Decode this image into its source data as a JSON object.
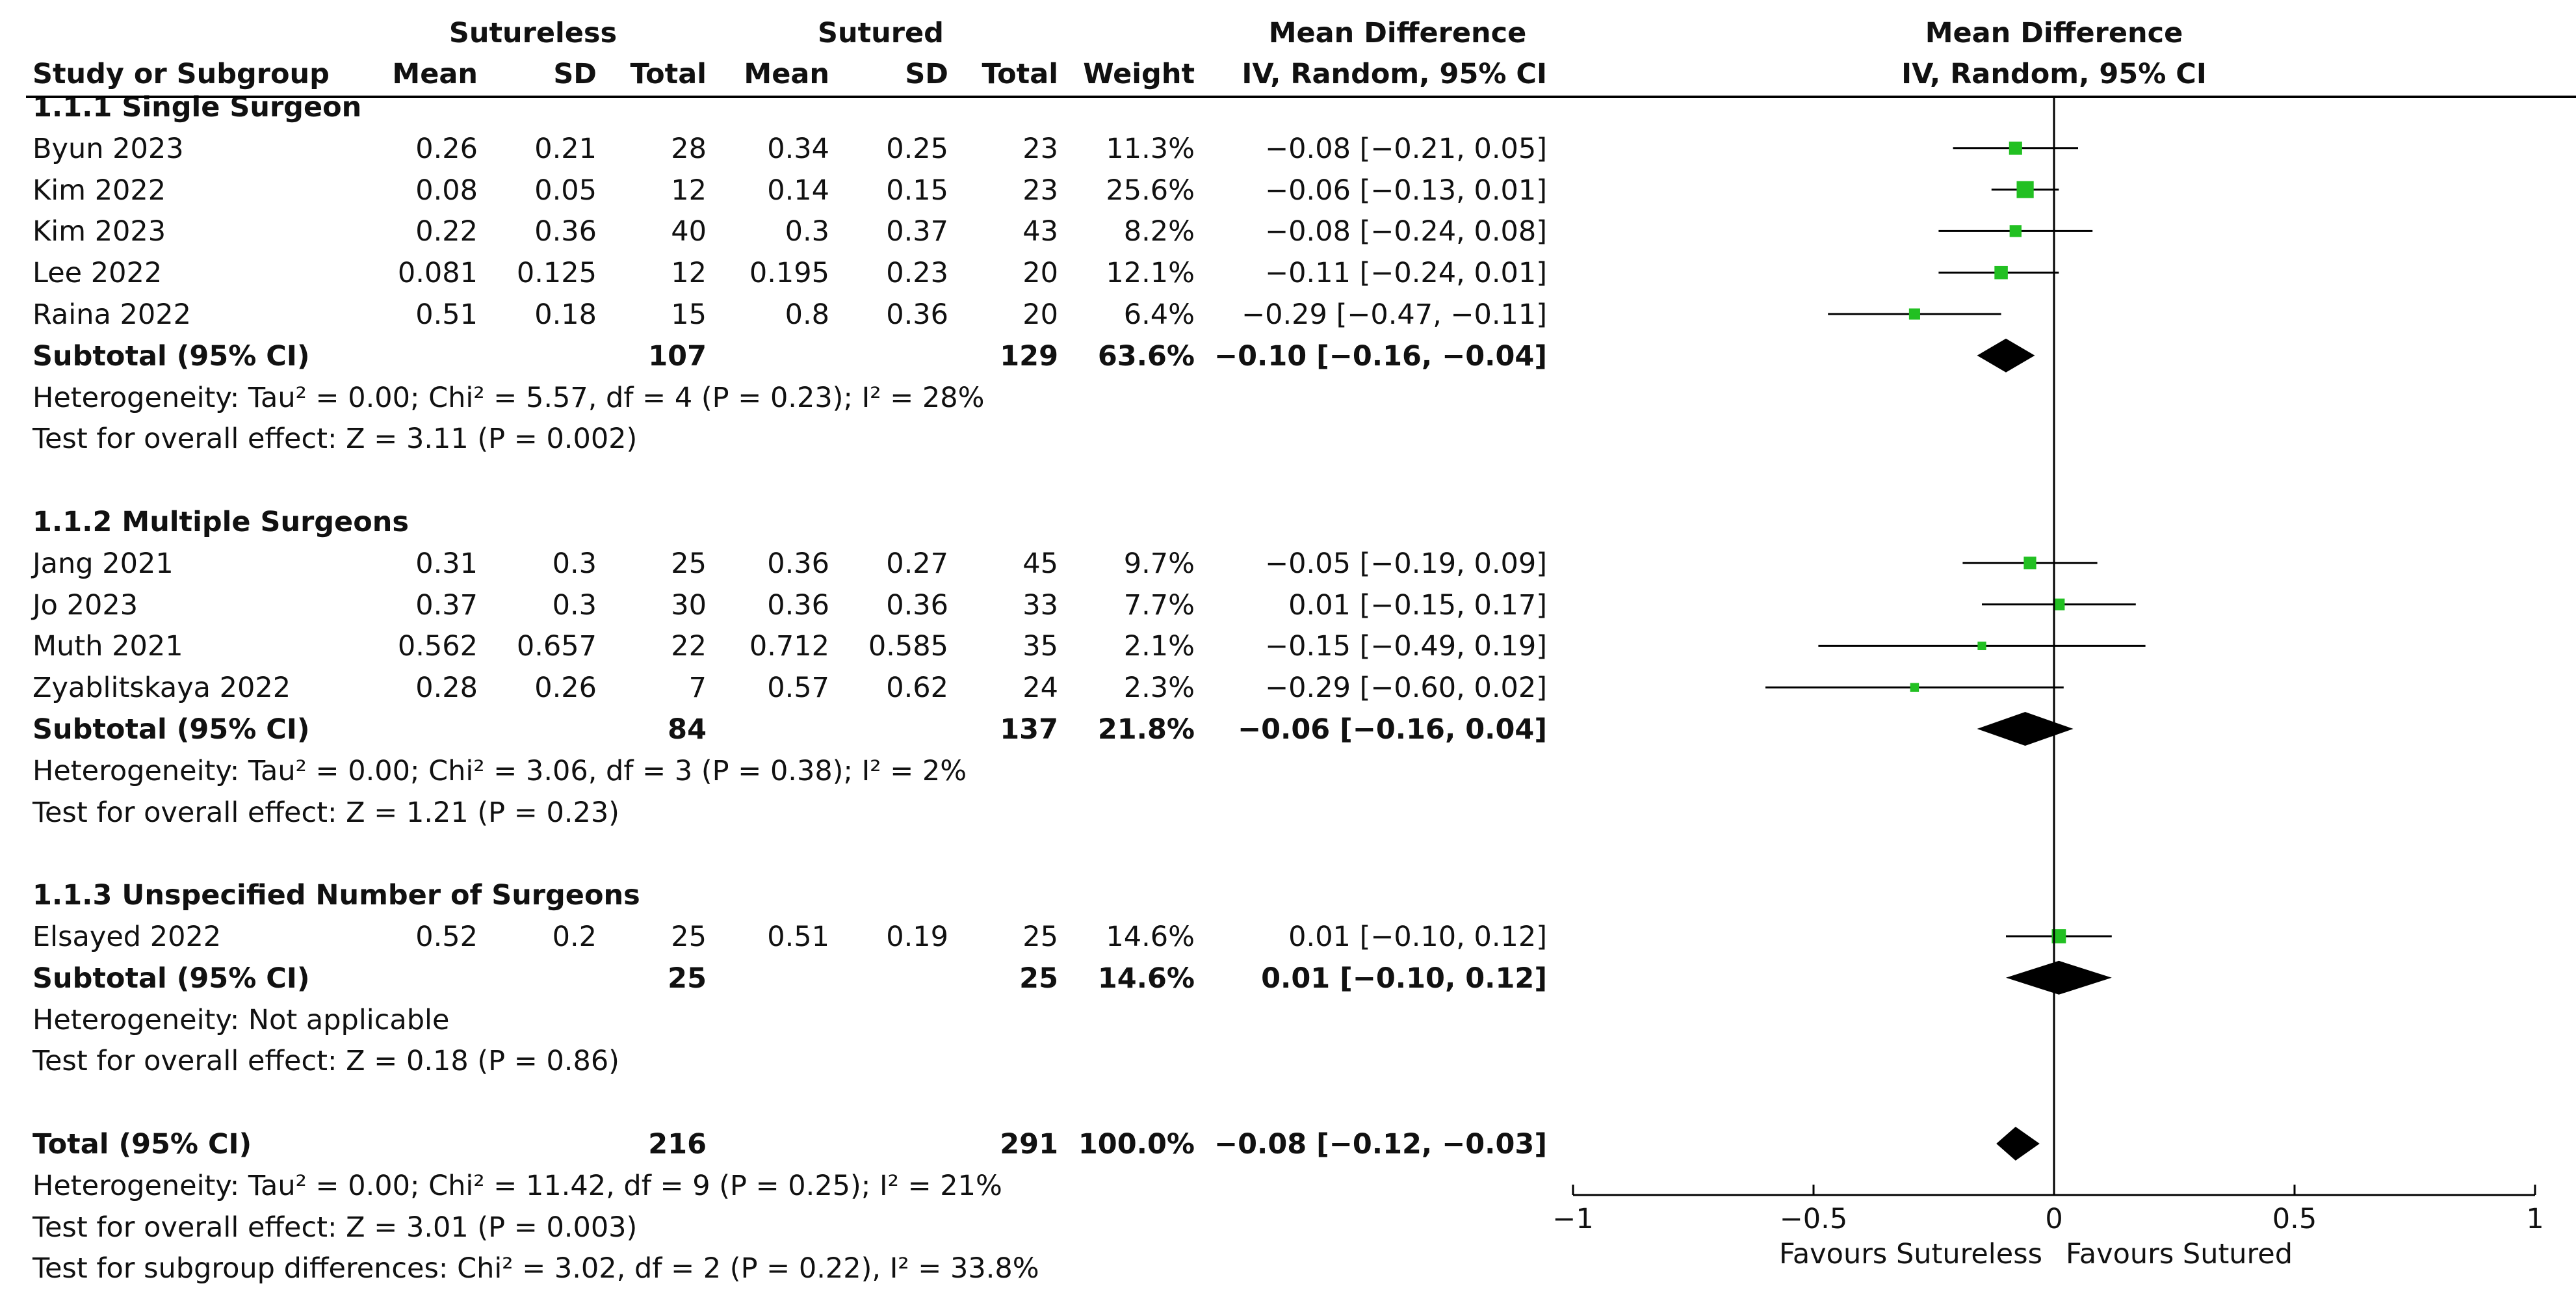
{
  "header": {
    "group1": "Sutureless",
    "group2": "Sutured",
    "effect_title": "Mean Difference",
    "plot_title": "Mean Difference",
    "columns": [
      "Study or Subgroup",
      "Mean",
      "SD",
      "Total",
      "Mean",
      "SD",
      "Total",
      "Weight",
      "IV, Random, 95% CI"
    ],
    "plot_subtitle": "IV, Random, 95% CI"
  },
  "rows": [
    {
      "type": "subgroup",
      "label": "1.1.1 Single Surgeon"
    },
    {
      "type": "study",
      "name": "Byun 2023",
      "m1": "0.26",
      "sd1": "0.21",
      "n1": "28",
      "m2": "0.34",
      "sd2": "0.25",
      "n2": "23",
      "weight": "11.3%",
      "ci": "−0.08 [−0.21, 0.05]",
      "est": -0.08,
      "lo": -0.21,
      "hi": 0.05,
      "w": 11.3
    },
    {
      "type": "study",
      "name": "Kim 2022",
      "m1": "0.08",
      "sd1": "0.05",
      "n1": "12",
      "m2": "0.14",
      "sd2": "0.15",
      "n2": "23",
      "weight": "25.6%",
      "ci": "−0.06 [−0.13, 0.01]",
      "est": -0.06,
      "lo": -0.13,
      "hi": 0.01,
      "w": 25.6
    },
    {
      "type": "study",
      "name": "Kim 2023",
      "m1": "0.22",
      "sd1": "0.36",
      "n1": "40",
      "m2": "0.3",
      "sd2": "0.37",
      "n2": "43",
      "weight": "8.2%",
      "ci": "−0.08 [−0.24, 0.08]",
      "est": -0.08,
      "lo": -0.24,
      "hi": 0.08,
      "w": 8.2
    },
    {
      "type": "study",
      "name": "Lee 2022",
      "m1": "0.081",
      "sd1": "0.125",
      "n1": "12",
      "m2": "0.195",
      "sd2": "0.23",
      "n2": "20",
      "weight": "12.1%",
      "ci": "−0.11 [−0.24, 0.01]",
      "est": -0.11,
      "lo": -0.24,
      "hi": 0.01,
      "w": 12.1
    },
    {
      "type": "study",
      "name": "Raina 2022",
      "m1": "0.51",
      "sd1": "0.18",
      "n1": "15",
      "m2": "0.8",
      "sd2": "0.36",
      "n2": "20",
      "weight": "6.4%",
      "ci": "−0.29 [−0.47, −0.11]",
      "est": -0.29,
      "lo": -0.47,
      "hi": -0.11,
      "w": 6.4
    },
    {
      "type": "subtotal",
      "name": "Subtotal (95% CI)",
      "n1": "107",
      "n2": "129",
      "weight": "63.6%",
      "ci": "−0.10 [−0.16, −0.04]",
      "est": -0.1,
      "lo": -0.16,
      "hi": -0.04
    },
    {
      "type": "note",
      "text": "Heterogeneity: Tau² = 0.00; Chi² = 5.57, df = 4 (P = 0.23); I² = 28%"
    },
    {
      "type": "note",
      "text": "Test for overall effect: Z = 3.11 (P = 0.002)"
    },
    {
      "type": "blank"
    },
    {
      "type": "subgroup",
      "label": "1.1.2 Multiple Surgeons"
    },
    {
      "type": "study",
      "name": "Jang 2021",
      "m1": "0.31",
      "sd1": "0.3",
      "n1": "25",
      "m2": "0.36",
      "sd2": "0.27",
      "n2": "45",
      "weight": "9.7%",
      "ci": "−0.05 [−0.19, 0.09]",
      "est": -0.05,
      "lo": -0.19,
      "hi": 0.09,
      "w": 9.7
    },
    {
      "type": "study",
      "name": "Jo 2023",
      "m1": "0.37",
      "sd1": "0.3",
      "n1": "30",
      "m2": "0.36",
      "sd2": "0.36",
      "n2": "33",
      "weight": "7.7%",
      "ci": "0.01 [−0.15, 0.17]",
      "est": 0.01,
      "lo": -0.15,
      "hi": 0.17,
      "w": 7.7
    },
    {
      "type": "study",
      "name": "Muth 2021",
      "m1": "0.562",
      "sd1": "0.657",
      "n1": "22",
      "m2": "0.712",
      "sd2": "0.585",
      "n2": "35",
      "weight": "2.1%",
      "ci": "−0.15 [−0.49, 0.19]",
      "est": -0.15,
      "lo": -0.49,
      "hi": 0.19,
      "w": 2.1
    },
    {
      "type": "study",
      "name": "Zyablitskaya 2022",
      "m1": "0.28",
      "sd1": "0.26",
      "n1": "7",
      "m2": "0.57",
      "sd2": "0.62",
      "n2": "24",
      "weight": "2.3%",
      "ci": "−0.29 [−0.60, 0.02]",
      "est": -0.29,
      "lo": -0.6,
      "hi": 0.02,
      "w": 2.3
    },
    {
      "type": "subtotal",
      "name": "Subtotal (95% CI)",
      "n1": "84",
      "n2": "137",
      "weight": "21.8%",
      "ci": "−0.06 [−0.16, 0.04]",
      "est": -0.06,
      "lo": -0.16,
      "hi": 0.04
    },
    {
      "type": "note",
      "text": "Heterogeneity: Tau² = 0.00; Chi² = 3.06, df = 3 (P = 0.38); I² = 2%"
    },
    {
      "type": "note",
      "text": "Test for overall effect: Z = 1.21 (P = 0.23)"
    },
    {
      "type": "blank"
    },
    {
      "type": "subgroup",
      "label": "1.1.3 Unspecified Number of Surgeons"
    },
    {
      "type": "study",
      "name": "Elsayed 2022",
      "m1": "0.52",
      "sd1": "0.2",
      "n1": "25",
      "m2": "0.51",
      "sd2": "0.19",
      "n2": "25",
      "weight": "14.6%",
      "ci": "0.01 [−0.10, 0.12]",
      "est": 0.01,
      "lo": -0.1,
      "hi": 0.12,
      "w": 14.6
    },
    {
      "type": "subtotal",
      "name": "Subtotal (95% CI)",
      "n1": "25",
      "n2": "25",
      "weight": "14.6%",
      "ci": "0.01 [−0.10, 0.12]",
      "est": 0.01,
      "lo": -0.1,
      "hi": 0.12
    },
    {
      "type": "note",
      "text": "Heterogeneity: Not applicable"
    },
    {
      "type": "note",
      "text": "Test for overall effect: Z = 0.18 (P = 0.86)"
    },
    {
      "type": "blank"
    },
    {
      "type": "total",
      "name": "Total (95% CI)",
      "n1": "216",
      "n2": "291",
      "weight": "100.0%",
      "ci": "−0.08 [−0.12, −0.03]",
      "est": -0.08,
      "lo": -0.12,
      "hi": -0.03
    },
    {
      "type": "note",
      "text": "Heterogeneity: Tau² = 0.00; Chi² = 11.42, df = 9 (P = 0.25); I² = 21%"
    },
    {
      "type": "note",
      "text": "Test for overall effect: Z = 3.01 (P = 0.003)"
    },
    {
      "type": "note",
      "text": "Test for subgroup differences: Chi² = 3.02, df = 2 (P = 0.22), I² = 33.8%"
    }
  ],
  "chart_data": {
    "type": "scatter",
    "xlim": [
      -1,
      1
    ],
    "xticks": [
      "−1",
      "−0.5",
      "0",
      "0.5",
      "1"
    ],
    "xtick_values": [
      -1,
      -0.5,
      0,
      0.5,
      1
    ],
    "favours_left": "Favours Sutureless",
    "favours_right": "Favours Sutured",
    "marker_color": "#22c022",
    "line_color": "#000000"
  }
}
